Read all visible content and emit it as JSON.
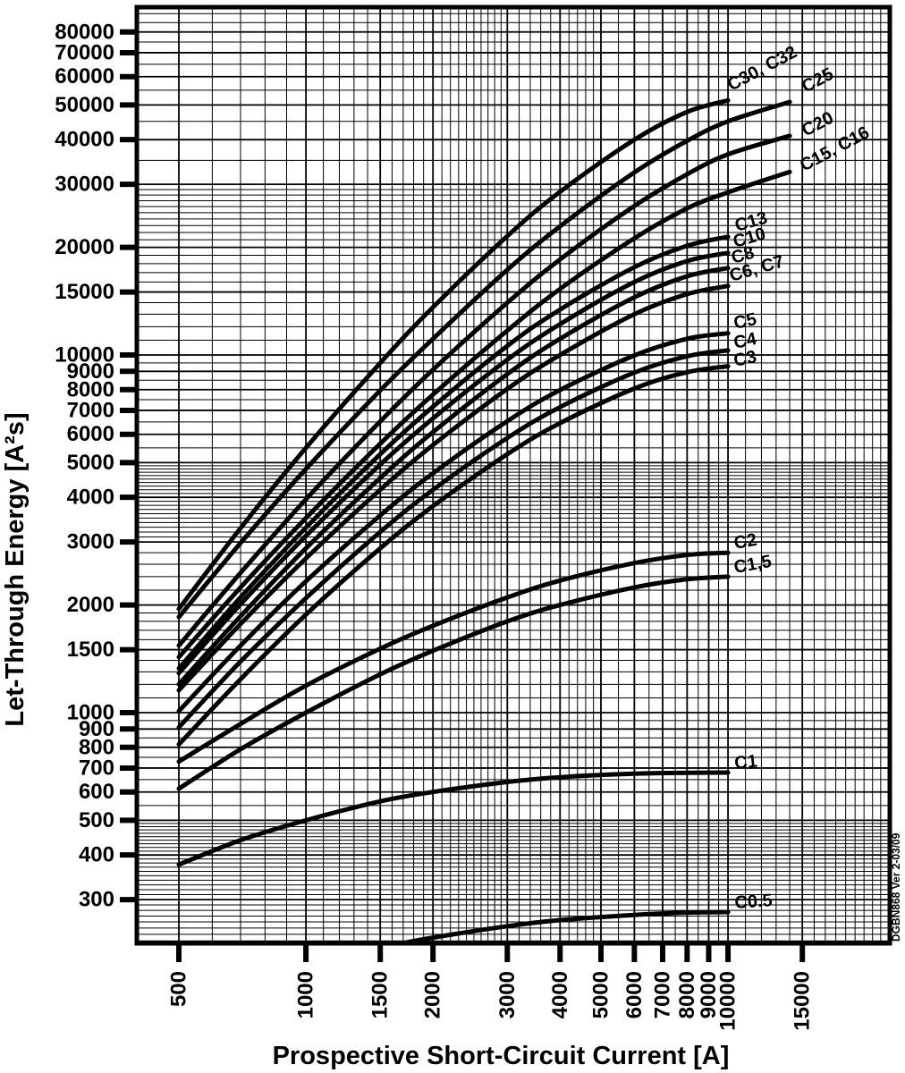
{
  "watermark": "DGBN868 Ver 2-03/09",
  "chart_data": {
    "type": "line",
    "title": "",
    "xlabel": "Prospective Short-Circuit Current [A]",
    "ylabel": "Let-Through Energy [A²s]",
    "x_scale": "log",
    "y_scale": "log",
    "xlim": [
      400,
      24000
    ],
    "ylim": [
      225,
      94000
    ],
    "grid": true,
    "legend_position": "labels-at-line-ends",
    "x_ticks": [
      500,
      1000,
      1500,
      2000,
      3000,
      4000,
      5000,
      6000,
      7000,
      8000,
      9000,
      10000,
      15000
    ],
    "y_ticks": [
      300,
      400,
      500,
      600,
      700,
      800,
      900,
      1000,
      1500,
      2000,
      3000,
      4000,
      5000,
      6000,
      7000,
      8000,
      9000,
      10000,
      15000,
      20000,
      30000,
      40000,
      50000,
      60000,
      70000,
      80000
    ],
    "line_color": "#000000",
    "series": [
      {
        "name": "C30, C32",
        "points": [
          [
            500,
            1950
          ],
          [
            700,
            3280
          ],
          [
            1000,
            5500
          ],
          [
            1500,
            9500
          ],
          [
            2000,
            13600
          ],
          [
            3000,
            21500
          ],
          [
            4000,
            28600
          ],
          [
            6000,
            40000
          ],
          [
            8000,
            47800
          ],
          [
            10000,
            51500
          ]
        ]
      },
      {
        "name": "C25",
        "points": [
          [
            500,
            1850
          ],
          [
            700,
            2980
          ],
          [
            1000,
            4800
          ],
          [
            1500,
            7960
          ],
          [
            2000,
            11100
          ],
          [
            3000,
            17300
          ],
          [
            4000,
            22900
          ],
          [
            6000,
            32400
          ],
          [
            8000,
            39700
          ],
          [
            10000,
            45000
          ],
          [
            14000,
            51000
          ]
        ]
      },
      {
        "name": "C20",
        "points": [
          [
            500,
            1540
          ],
          [
            700,
            2460
          ],
          [
            1000,
            3950
          ],
          [
            1500,
            6520
          ],
          [
            2000,
            9100
          ],
          [
            3000,
            14000
          ],
          [
            4000,
            18500
          ],
          [
            6000,
            26100
          ],
          [
            8000,
            32000
          ],
          [
            10000,
            36400
          ],
          [
            14000,
            41000
          ]
        ]
      },
      {
        "name": "C15, C16",
        "points": [
          [
            500,
            1430
          ],
          [
            700,
            2240
          ],
          [
            1000,
            3500
          ],
          [
            1500,
            5650
          ],
          [
            2000,
            7750
          ],
          [
            3000,
            11700
          ],
          [
            4000,
            15300
          ],
          [
            6000,
            21200
          ],
          [
            8000,
            25700
          ],
          [
            10000,
            28500
          ],
          [
            14000,
            32500
          ]
        ]
      },
      {
        "name": "C13",
        "points": [
          [
            500,
            1330
          ],
          [
            700,
            2100
          ],
          [
            1000,
            3290
          ],
          [
            1500,
            5280
          ],
          [
            2000,
            7170
          ],
          [
            3000,
            10600
          ],
          [
            4000,
            13400
          ],
          [
            6000,
            17600
          ],
          [
            8000,
            20200
          ],
          [
            10000,
            21400
          ]
        ]
      },
      {
        "name": "C10",
        "points": [
          [
            500,
            1290
          ],
          [
            700,
            2010
          ],
          [
            1000,
            3120
          ],
          [
            1500,
            4940
          ],
          [
            2000,
            6650
          ],
          [
            3000,
            9700
          ],
          [
            4000,
            12200
          ],
          [
            6000,
            16000
          ],
          [
            8000,
            18300
          ],
          [
            10000,
            19300
          ]
        ]
      },
      {
        "name": "C8",
        "points": [
          [
            500,
            1200
          ],
          [
            700,
            1860
          ],
          [
            1000,
            2880
          ],
          [
            1500,
            4530
          ],
          [
            2000,
            6090
          ],
          [
            3000,
            8840
          ],
          [
            4000,
            11100
          ],
          [
            6000,
            14500
          ],
          [
            8000,
            16600
          ],
          [
            10000,
            17500
          ]
        ]
      },
      {
        "name": "C6, C7",
        "points": [
          [
            500,
            1155
          ],
          [
            700,
            1770
          ],
          [
            1000,
            2700
          ],
          [
            1500,
            4200
          ],
          [
            2000,
            5600
          ],
          [
            3000,
            8040
          ],
          [
            4000,
            10000
          ],
          [
            6000,
            13000
          ],
          [
            8000,
            14800
          ],
          [
            10000,
            15600
          ]
        ]
      },
      {
        "name": "C5",
        "points": [
          [
            500,
            1010
          ],
          [
            700,
            1540
          ],
          [
            1000,
            2330
          ],
          [
            1500,
            3560
          ],
          [
            2000,
            4670
          ],
          [
            3000,
            6530
          ],
          [
            4000,
            7980
          ],
          [
            6000,
            9970
          ],
          [
            8000,
            11100
          ],
          [
            10000,
            11500
          ]
        ]
      },
      {
        "name": "C4",
        "points": [
          [
            500,
            910
          ],
          [
            700,
            1390
          ],
          [
            1000,
            2090
          ],
          [
            1500,
            3200
          ],
          [
            2000,
            4200
          ],
          [
            3000,
            5860
          ],
          [
            4000,
            7150
          ],
          [
            6000,
            8930
          ],
          [
            8000,
            9920
          ],
          [
            10000,
            10300
          ]
        ]
      },
      {
        "name": "C3",
        "points": [
          [
            500,
            815
          ],
          [
            700,
            1240
          ],
          [
            1000,
            1880
          ],
          [
            1500,
            2880
          ],
          [
            2000,
            3780
          ],
          [
            3000,
            5280
          ],
          [
            4000,
            6450
          ],
          [
            6000,
            8060
          ],
          [
            8000,
            8950
          ],
          [
            10000,
            9300
          ]
        ]
      },
      {
        "name": "C2",
        "points": [
          [
            500,
            730
          ],
          [
            700,
            930
          ],
          [
            1000,
            1190
          ],
          [
            1500,
            1510
          ],
          [
            2000,
            1750
          ],
          [
            3000,
            2100
          ],
          [
            4000,
            2340
          ],
          [
            6000,
            2620
          ],
          [
            8000,
            2760
          ],
          [
            10000,
            2800
          ]
        ]
      },
      {
        "name": "C1,5",
        "points": [
          [
            500,
            613
          ],
          [
            700,
            790
          ],
          [
            1000,
            1000
          ],
          [
            1500,
            1280
          ],
          [
            2000,
            1490
          ],
          [
            3000,
            1800
          ],
          [
            4000,
            2000
          ],
          [
            6000,
            2240
          ],
          [
            8000,
            2360
          ],
          [
            10000,
            2400
          ]
        ]
      },
      {
        "name": "C1",
        "points": [
          [
            500,
            376
          ],
          [
            700,
            440
          ],
          [
            1000,
            500
          ],
          [
            1500,
            565
          ],
          [
            2000,
            600
          ],
          [
            3000,
            640
          ],
          [
            4000,
            660
          ],
          [
            6000,
            675
          ],
          [
            8000,
            679
          ],
          [
            10000,
            680
          ]
        ]
      },
      {
        "name": "C0.5",
        "points": [
          [
            1700,
            227
          ],
          [
            2000,
            235
          ],
          [
            3000,
            253
          ],
          [
            4000,
            263
          ],
          [
            6000,
            272
          ],
          [
            8000,
            276
          ],
          [
            10000,
            277
          ]
        ]
      }
    ]
  }
}
